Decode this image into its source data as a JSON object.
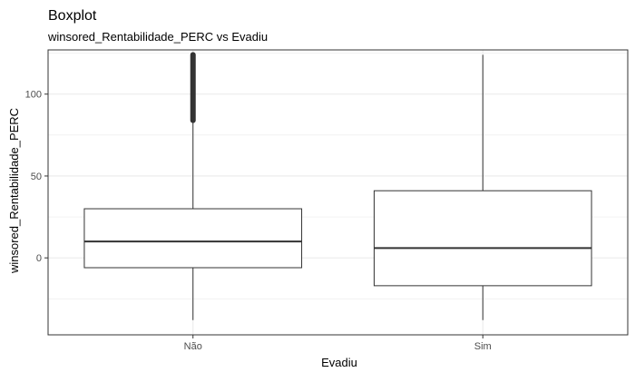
{
  "chart_data": {
    "type": "boxplot",
    "title": "Boxplot",
    "subtitle": "winsored_Rentabilidade_PERC vs Evadiu",
    "xlabel": "Evadiu",
    "ylabel": "winsored_Rentabilidade_PERC",
    "categories": [
      "Não",
      "Sim"
    ],
    "ylim": [
      -47,
      127
    ],
    "yticks": [
      0,
      50,
      100
    ],
    "grid": true,
    "boxes": [
      {
        "category": "Não",
        "whisker_low": -38,
        "q1": -6,
        "median": 10,
        "q3": 30,
        "whisker_high": 84,
        "outlier_range": [
          84,
          124
        ]
      },
      {
        "category": "Sim",
        "whisker_low": -38,
        "q1": -17,
        "median": 6,
        "q3": 41,
        "whisker_high": 124
      }
    ],
    "colors": {
      "box_fill": "#ffffff",
      "box_stroke": "#333333",
      "grid": "#ebebeb",
      "panel_border": "#333333"
    }
  }
}
